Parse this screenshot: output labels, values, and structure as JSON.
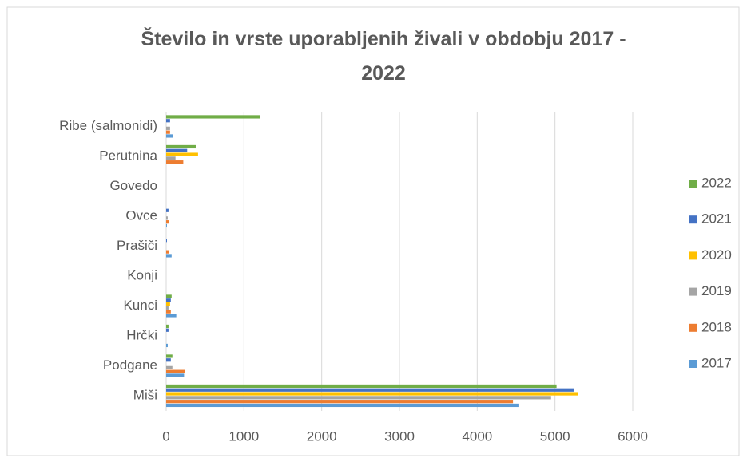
{
  "chart_data": {
    "type": "hbar",
    "title": "Število in vrste uporabljenih živali v obdobju 2017 - 2022",
    "categories": [
      "Ribe (salmonidi)",
      "Perutnina",
      "Govedo",
      "Ovce",
      "Prašiči",
      "Konji",
      "Kunci",
      "Hrčki",
      "Podgane",
      "Miši"
    ],
    "series": [
      {
        "name": "2017",
        "color": "#5b9bd5",
        "values": [
          90,
          0,
          0,
          10,
          70,
          0,
          130,
          20,
          230,
          4530
        ]
      },
      {
        "name": "2018",
        "color": "#ed7d31",
        "values": [
          50,
          220,
          0,
          40,
          40,
          0,
          60,
          0,
          240,
          4460
        ]
      },
      {
        "name": "2019",
        "color": "#a5a5a5",
        "values": [
          50,
          120,
          0,
          20,
          0,
          0,
          30,
          0,
          80,
          4950
        ]
      },
      {
        "name": "2020",
        "color": "#ffc000",
        "values": [
          0,
          410,
          0,
          0,
          0,
          0,
          50,
          0,
          0,
          5300
        ]
      },
      {
        "name": "2021",
        "color": "#4472c4",
        "values": [
          50,
          270,
          0,
          30,
          10,
          0,
          60,
          30,
          60,
          5250
        ]
      },
      {
        "name": "2022",
        "color": "#70ad47",
        "values": [
          1210,
          380,
          0,
          0,
          0,
          0,
          70,
          30,
          80,
          5020
        ]
      }
    ],
    "xlim": [
      0,
      6000
    ],
    "xticks": [
      0,
      1000,
      2000,
      3000,
      4000,
      5000,
      6000
    ],
    "grid": true,
    "legend": "right"
  }
}
